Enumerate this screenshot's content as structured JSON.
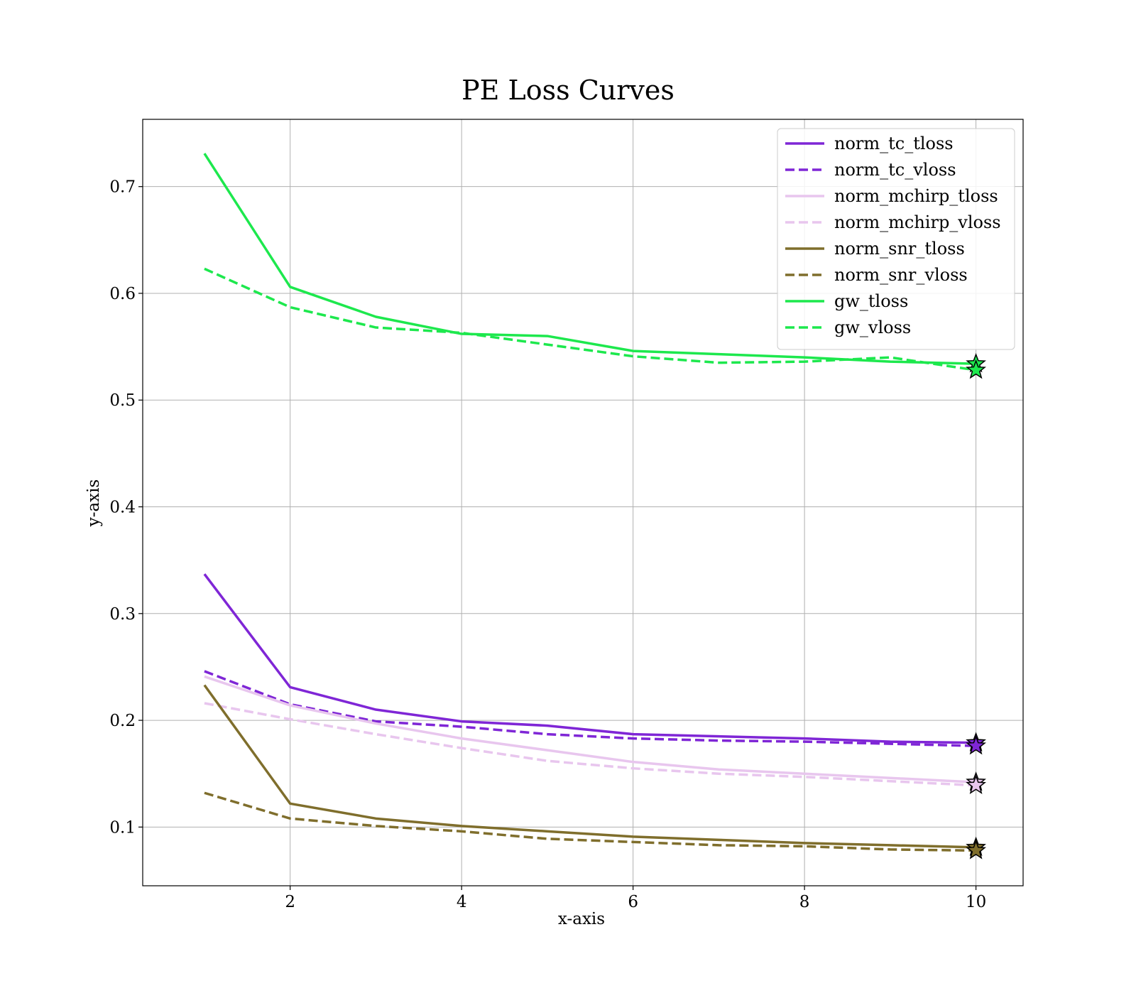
{
  "chart_data": {
    "type": "line",
    "title": "PE Loss Curves",
    "xlabel": "x-axis",
    "ylabel": "y-axis",
    "xlim": [
      0.28,
      10.55
    ],
    "ylim": [
      0.045,
      0.763
    ],
    "xticks": [
      2,
      4,
      6,
      8,
      10
    ],
    "yticks": [
      0.1,
      0.2,
      0.3,
      0.4,
      0.5,
      0.6,
      0.7
    ],
    "grid": true,
    "legend_position": "top-right",
    "final_point_marker": "star",
    "x": [
      1,
      2,
      3,
      4,
      5,
      6,
      7,
      8,
      9,
      10
    ],
    "series": [
      {
        "name": "norm_tc_tloss",
        "color": "#7f26d6",
        "dash": "solid",
        "values": [
          0.337,
          0.231,
          0.21,
          0.199,
          0.195,
          0.187,
          0.185,
          0.183,
          0.18,
          0.179
        ]
      },
      {
        "name": "norm_tc_vloss",
        "color": "#7f26d6",
        "dash": "dashed",
        "values": [
          0.246,
          0.215,
          0.199,
          0.194,
          0.187,
          0.183,
          0.181,
          0.18,
          0.178,
          0.176
        ]
      },
      {
        "name": "norm_mchirp_tloss",
        "color": "#e8c6ee",
        "dash": "solid",
        "values": [
          0.241,
          0.214,
          0.197,
          0.183,
          0.172,
          0.161,
          0.154,
          0.15,
          0.146,
          0.142
        ]
      },
      {
        "name": "norm_mchirp_vloss",
        "color": "#e8c6ee",
        "dash": "dashed",
        "values": [
          0.216,
          0.201,
          0.187,
          0.174,
          0.162,
          0.155,
          0.15,
          0.147,
          0.143,
          0.139
        ]
      },
      {
        "name": "norm_snr_tloss",
        "color": "#7f6e2c",
        "dash": "solid",
        "values": [
          0.233,
          0.122,
          0.108,
          0.101,
          0.096,
          0.091,
          0.088,
          0.085,
          0.083,
          0.081
        ]
      },
      {
        "name": "norm_snr_vloss",
        "color": "#7f6e2c",
        "dash": "dashed",
        "values": [
          0.132,
          0.108,
          0.101,
          0.096,
          0.089,
          0.086,
          0.083,
          0.082,
          0.079,
          0.078
        ]
      },
      {
        "name": "gw_tloss",
        "color": "#1de84d",
        "dash": "solid",
        "values": [
          0.731,
          0.606,
          0.578,
          0.562,
          0.56,
          0.546,
          0.543,
          0.54,
          0.536,
          0.534
        ]
      },
      {
        "name": "gw_vloss",
        "color": "#1de84d",
        "dash": "dashed",
        "values": [
          0.623,
          0.587,
          0.568,
          0.563,
          0.552,
          0.541,
          0.535,
          0.536,
          0.54,
          0.528
        ]
      }
    ]
  }
}
